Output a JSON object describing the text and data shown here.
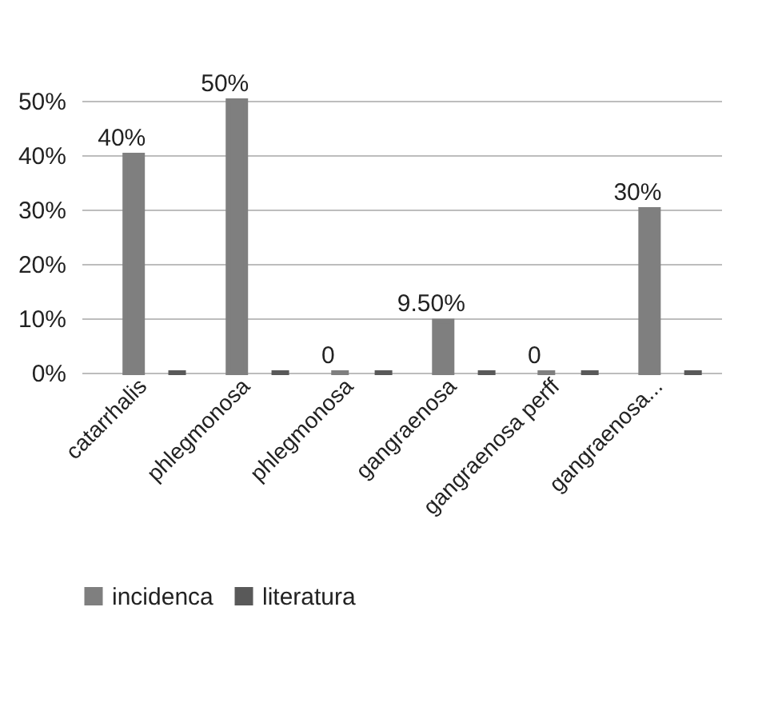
{
  "chart_data": {
    "type": "bar",
    "categories": [
      "catarrhalis",
      "phlegmonosa",
      "phlegmonosa",
      "gangraenosa",
      "gangraenosa perff",
      "gangraenosa..."
    ],
    "series": [
      {
        "name": "incidenca",
        "color": "#7f7f7f",
        "values": [
          40,
          50,
          0,
          9.5,
          0,
          30
        ],
        "value_labels": [
          "40%",
          "50%",
          "0",
          "9.50%",
          "0",
          "30%"
        ]
      },
      {
        "name": "literatura",
        "color": "#595959",
        "values": [
          0,
          0,
          0,
          0,
          0,
          0
        ]
      }
    ],
    "ylim": [
      0,
      50
    ],
    "yticks": [
      {
        "value": 0,
        "label": "0%"
      },
      {
        "value": 10,
        "label": "10%"
      },
      {
        "value": 20,
        "label": "20%"
      },
      {
        "value": 30,
        "label": "30%"
      },
      {
        "value": 40,
        "label": "40%"
      },
      {
        "value": 50,
        "label": "50%"
      }
    ],
    "grid": "y",
    "legend": "bottom"
  }
}
